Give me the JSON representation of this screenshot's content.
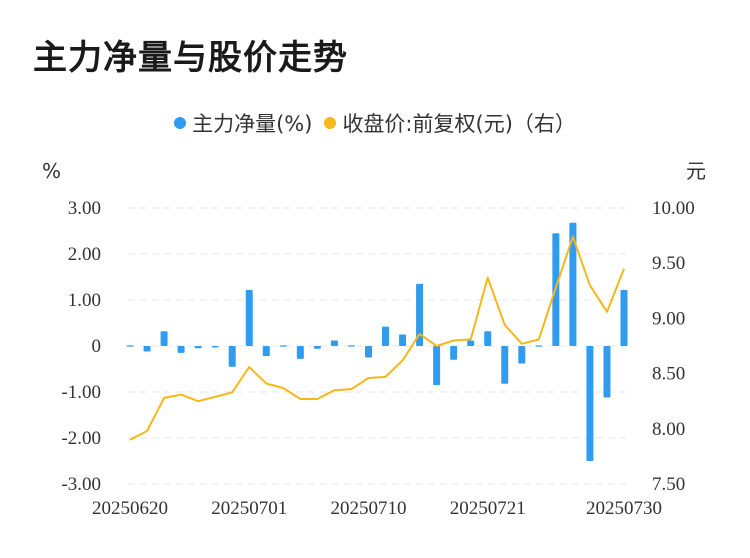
{
  "title": "主力净量与股价走势",
  "colors": {
    "bar": "#2f9cf0",
    "line": "#f5b81c",
    "grid": "#e6e6e6"
  },
  "chart_data": {
    "type": "bar+line",
    "legend": {
      "bar_label": "主力净量(%)",
      "line_label": "收盘价:前复权(元)（右）",
      "placement": "top-center"
    },
    "left_axis": {
      "unit": "%",
      "ylim": [
        -3,
        3
      ],
      "ticks": [
        "3.00",
        "2.00",
        "1.00",
        "0",
        "-1.00",
        "-2.00",
        "-3.00"
      ]
    },
    "right_axis": {
      "unit": "元",
      "ylim": [
        7.5,
        10.0
      ],
      "ticks": [
        "10.00",
        "9.50",
        "9.00",
        "8.50",
        "8.00",
        "7.50"
      ]
    },
    "x_tick_labels": [
      "20250620",
      "20250701",
      "20250710",
      "20250721",
      "20250730"
    ],
    "x_tick_indices": [
      0,
      7,
      14,
      21,
      29
    ],
    "grid": true,
    "bar_values": [
      0.0,
      -0.12,
      0.32,
      -0.15,
      -0.05,
      -0.03,
      -0.45,
      1.22,
      -0.22,
      0.0,
      -0.28,
      -0.06,
      0.12,
      -0.02,
      -0.25,
      0.42,
      0.25,
      1.35,
      -0.85,
      -0.3,
      0.12,
      0.32,
      -0.82,
      -0.38,
      -0.02,
      2.45,
      2.68,
      -2.5,
      -1.12,
      1.22
    ],
    "line_values": [
      7.9,
      7.98,
      8.28,
      8.31,
      8.25,
      8.29,
      8.33,
      8.56,
      8.41,
      8.37,
      8.27,
      8.27,
      8.35,
      8.36,
      8.46,
      8.47,
      8.62,
      8.86,
      8.75,
      8.8,
      8.81,
      9.37,
      8.94,
      8.77,
      8.81,
      9.28,
      9.74,
      9.3,
      9.06,
      9.45
    ]
  }
}
